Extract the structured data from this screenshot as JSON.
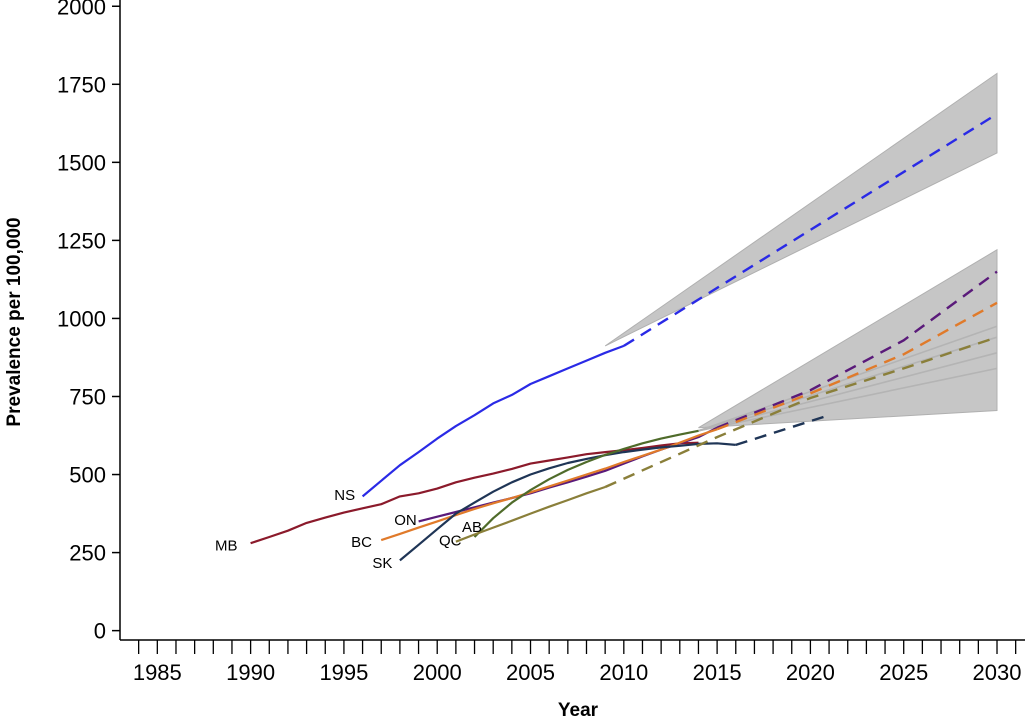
{
  "chart_data": {
    "type": "line",
    "title": "",
    "xlabel": "Year",
    "ylabel": "Prevalence per 100,000",
    "xlim": [
      1983,
      2031.5
    ],
    "ylim": [
      -30,
      2020
    ],
    "x_ticks": [
      1985,
      1990,
      1995,
      2000,
      2005,
      2010,
      2015,
      2020,
      2025,
      2030
    ],
    "x_minor_ticks": [
      1984,
      1985,
      1986,
      1987,
      1988,
      1989,
      1990,
      1991,
      1992,
      1993,
      1994,
      1995,
      1996,
      1997,
      1998,
      1999,
      2000,
      2001,
      2002,
      2003,
      2004,
      2005,
      2006,
      2007,
      2008,
      2009,
      2010,
      2011,
      2012,
      2013,
      2014,
      2015,
      2016,
      2017,
      2018,
      2019,
      2020,
      2021,
      2022,
      2023,
      2024,
      2025,
      2026,
      2027,
      2028,
      2029,
      2030,
      2031
    ],
    "y_ticks": [
      0,
      250,
      500,
      750,
      1000,
      1250,
      1500,
      1750,
      2000
    ],
    "grid": false,
    "colors": {
      "NS": "#2a2ae6",
      "MB": "#8b1a2b",
      "ON": "#5a1a7a",
      "BC": "#e07a2a",
      "SK": "#1f3556",
      "AB": "#4f6b2a",
      "QC": "#8a7f3a",
      "band": "#c6c6c6",
      "faint": "#b4b4b4"
    },
    "bands": [
      {
        "upper": [
          [
            2009,
            912
          ],
          [
            2030,
            1785
          ]
        ],
        "lower": [
          [
            2030,
            1530
          ],
          [
            2009,
            912
          ]
        ]
      },
      {
        "upper": [
          [
            2014,
            650
          ],
          [
            2030,
            1220
          ]
        ],
        "lower": [
          [
            2030,
            705
          ],
          [
            2014,
            650
          ]
        ]
      }
    ],
    "faint_lines": [
      [
        [
          2014,
          640
        ],
        [
          2030,
          975
        ]
      ],
      [
        [
          2014,
          640
        ],
        [
          2030,
          940
        ]
      ],
      [
        [
          2014,
          640
        ],
        [
          2030,
          890
        ]
      ],
      [
        [
          2014,
          640
        ],
        [
          2030,
          840
        ]
      ]
    ],
    "series": [
      {
        "name": "NS",
        "label_at": [
          1995.6,
          435
        ],
        "observed": [
          [
            1996,
            430
          ],
          [
            1997,
            480
          ],
          [
            1998,
            530
          ],
          [
            1999,
            572
          ],
          [
            2000,
            615
          ],
          [
            2001,
            655
          ],
          [
            2002,
            690
          ],
          [
            2003,
            728
          ],
          [
            2004,
            755
          ],
          [
            2005,
            790
          ],
          [
            2006,
            815
          ],
          [
            2007,
            840
          ],
          [
            2008,
            865
          ],
          [
            2009,
            890
          ],
          [
            2010,
            912
          ]
        ],
        "projected": [
          [
            2010,
            912
          ],
          [
            2030,
            1655
          ]
        ]
      },
      {
        "name": "MB",
        "label_at": [
          1989.3,
          273
        ],
        "observed": [
          [
            1990,
            280
          ],
          [
            1991,
            300
          ],
          [
            1992,
            320
          ],
          [
            1993,
            345
          ],
          [
            1994,
            362
          ],
          [
            1995,
            378
          ],
          [
            1996,
            392
          ],
          [
            1997,
            405
          ],
          [
            1998,
            430
          ],
          [
            1999,
            440
          ],
          [
            2000,
            455
          ],
          [
            2001,
            475
          ],
          [
            2002,
            490
          ],
          [
            2003,
            503
          ],
          [
            2004,
            518
          ],
          [
            2005,
            535
          ],
          [
            2006,
            545
          ],
          [
            2007,
            555
          ],
          [
            2008,
            565
          ],
          [
            2009,
            572
          ],
          [
            2010,
            578
          ],
          [
            2011,
            585
          ],
          [
            2012,
            593
          ],
          [
            2013,
            600
          ],
          [
            2014,
            602
          ]
        ],
        "projected": []
      },
      {
        "name": "ON",
        "label_at": [
          1998.9,
          354
        ],
        "observed": [
          [
            1999,
            350
          ],
          [
            2000,
            365
          ],
          [
            2001,
            380
          ],
          [
            2002,
            395
          ],
          [
            2003,
            410
          ],
          [
            2004,
            425
          ],
          [
            2005,
            440
          ],
          [
            2006,
            458
          ],
          [
            2007,
            475
          ],
          [
            2008,
            493
          ],
          [
            2009,
            512
          ],
          [
            2010,
            535
          ],
          [
            2011,
            558
          ],
          [
            2012,
            580
          ],
          [
            2013,
            600
          ],
          [
            2014,
            620
          ],
          [
            2015,
            650
          ]
        ],
        "projected": [
          [
            2015,
            650
          ],
          [
            2020,
            770
          ],
          [
            2025,
            930
          ],
          [
            2030,
            1150
          ]
        ]
      },
      {
        "name": "BC",
        "label_at": [
          1996.5,
          284
        ],
        "observed": [
          [
            1997,
            290
          ],
          [
            1998,
            310
          ],
          [
            1999,
            330
          ],
          [
            2000,
            350
          ],
          [
            2001,
            370
          ],
          [
            2002,
            390
          ],
          [
            2003,
            408
          ],
          [
            2004,
            425
          ],
          [
            2005,
            443
          ],
          [
            2006,
            462
          ],
          [
            2007,
            481
          ],
          [
            2008,
            500
          ],
          [
            2009,
            519
          ],
          [
            2010,
            540
          ],
          [
            2011,
            560
          ],
          [
            2012,
            580
          ],
          [
            2013,
            602
          ],
          [
            2014,
            625
          ],
          [
            2015,
            645
          ]
        ],
        "projected": [
          [
            2015,
            645
          ],
          [
            2020,
            760
          ],
          [
            2025,
            885
          ],
          [
            2030,
            1050
          ]
        ]
      },
      {
        "name": "SK",
        "label_at": [
          1997.6,
          216
        ],
        "observed": [
          [
            1998,
            225
          ],
          [
            1999,
            275
          ],
          [
            2000,
            325
          ],
          [
            2001,
            375
          ],
          [
            2002,
            410
          ],
          [
            2003,
            445
          ],
          [
            2004,
            475
          ],
          [
            2005,
            500
          ],
          [
            2006,
            520
          ],
          [
            2007,
            537
          ],
          [
            2008,
            550
          ],
          [
            2009,
            562
          ],
          [
            2010,
            572
          ],
          [
            2011,
            580
          ],
          [
            2012,
            587
          ],
          [
            2013,
            592
          ],
          [
            2014,
            598
          ],
          [
            2015,
            600
          ],
          [
            2016,
            595
          ]
        ],
        "projected": [
          [
            2016,
            595
          ],
          [
            2021,
            690
          ]
        ]
      },
      {
        "name": "AB",
        "label_at": [
          2002.4,
          332
        ],
        "observed": [
          [
            2002,
            300
          ],
          [
            2003,
            360
          ],
          [
            2004,
            410
          ],
          [
            2005,
            450
          ],
          [
            2006,
            485
          ],
          [
            2007,
            515
          ],
          [
            2008,
            540
          ],
          [
            2009,
            563
          ],
          [
            2010,
            582
          ],
          [
            2011,
            600
          ],
          [
            2012,
            615
          ],
          [
            2013,
            628
          ],
          [
            2014,
            640
          ]
        ],
        "projected": []
      },
      {
        "name": "QC",
        "label_at": [
          2001.3,
          288
        ],
        "observed": [
          [
            2001,
            285
          ],
          [
            2002,
            308
          ],
          [
            2003,
            330
          ],
          [
            2004,
            352
          ],
          [
            2005,
            375
          ],
          [
            2006,
            397
          ],
          [
            2007,
            418
          ],
          [
            2008,
            440
          ],
          [
            2009,
            460
          ]
        ],
        "projected": [
          [
            2009,
            460
          ],
          [
            2015,
            620
          ],
          [
            2020,
            745
          ],
          [
            2025,
            840
          ],
          [
            2030,
            940
          ]
        ]
      }
    ]
  }
}
